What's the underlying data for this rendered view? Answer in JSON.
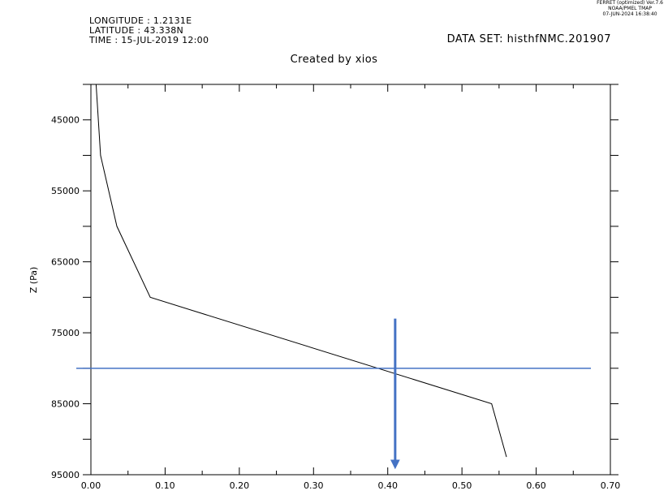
{
  "header": {
    "longitude": "LONGITUDE : 1.2131E",
    "latitude": "LATITUDE : 43.338N",
    "time": "TIME : 15-JUL-2019 12:00",
    "dataset": "DATA SET: histhfNMC.201907",
    "subtitle": "Created by xios",
    "ferret_line1": "FERRET (optimized) Ver.7.6",
    "ferret_line2": "NOAA/PMEL TMAP",
    "ferret_line3": "07-JUN-2024 16:38:40"
  },
  "chart_data": {
    "type": "line",
    "title": "",
    "xlabel": "",
    "ylabel": "Z (Pa)",
    "xlim": [
      0,
      0.7
    ],
    "ylim": [
      95000,
      40000
    ],
    "x_ticks": [
      "0.00",
      "0.10",
      "0.20",
      "0.30",
      "0.40",
      "0.50",
      "0.60",
      "0.70"
    ],
    "y_ticks": [
      "45000",
      "55000",
      "65000",
      "75000",
      "85000",
      "95000"
    ],
    "grid": false,
    "series": [
      {
        "x": [
          0.007,
          0.013,
          0.035,
          0.08,
          0.54,
          0.56
        ],
        "y": [
          40000,
          50000,
          60000,
          70000,
          85000,
          92500
        ]
      }
    ],
    "annotations": {
      "horizontal_line": {
        "y": 80000,
        "color": "#4472c4"
      },
      "arrow": {
        "x": 0.41,
        "y_start": 73000,
        "y_end": 94000,
        "color": "#4472c4"
      }
    }
  }
}
